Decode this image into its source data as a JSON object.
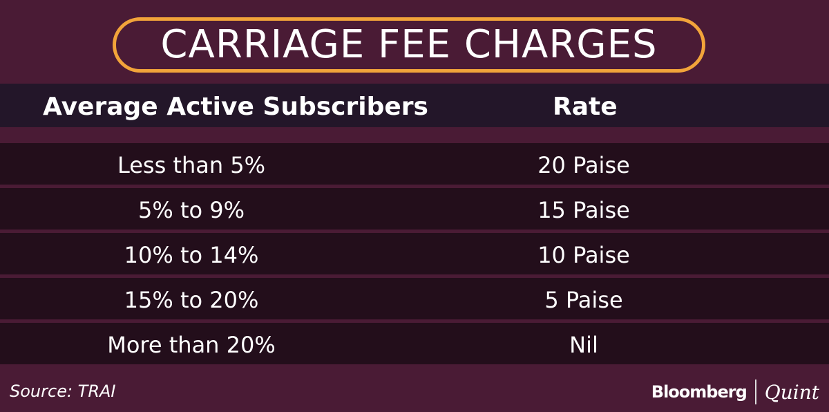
{
  "title": "CARRIAGE FEE CHARGES",
  "chart_data": {
    "type": "table",
    "columns": [
      "Average Active Subscribers",
      "Rate"
    ],
    "rows": [
      [
        "Less than 5%",
        "20 Paise"
      ],
      [
        "5% to 9%",
        "15 Paise"
      ],
      [
        "10% to 14%",
        "10 Paise"
      ],
      [
        "15% to 20%",
        "5 Paise"
      ],
      [
        "More than 20%",
        "Nil"
      ]
    ]
  },
  "source": "Source: TRAI",
  "logo": {
    "left": "Bloomberg",
    "right": "Quint"
  },
  "colors": {
    "background": "#4a1b35",
    "accent": "#f2a43a",
    "header_band": "#231629",
    "row": "#230e1b"
  }
}
